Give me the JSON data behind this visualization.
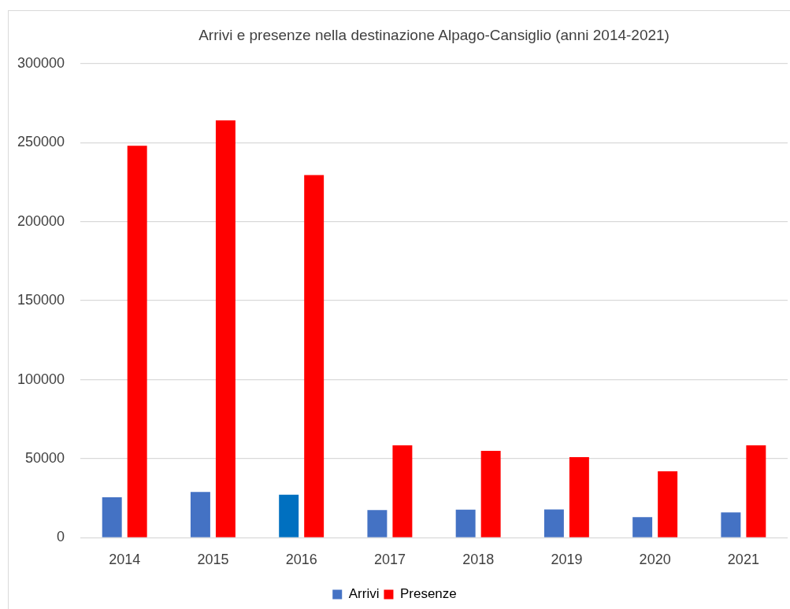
{
  "chart_data": {
    "type": "bar",
    "title": "Arrivi e presenze nella destinazione Alpago-Cansiglio (anni 2014-2021)",
    "categories": [
      "2014",
      "2015",
      "2016",
      "2017",
      "2018",
      "2019",
      "2020",
      "2021"
    ],
    "series": [
      {
        "name": "Arrivi",
        "color": "#4472c4",
        "colors": [
          "#4472c4",
          "#4472c4",
          "#0070c0",
          "#4472c4",
          "#4472c4",
          "#4472c4",
          "#4472c4",
          "#4472c4"
        ],
        "values": [
          25600,
          29000,
          27200,
          17500,
          17700,
          17900,
          13000,
          16000
        ]
      },
      {
        "name": "Presenze",
        "color": "#ff0000",
        "values": [
          248000,
          264000,
          229500,
          58500,
          55000,
          51000,
          42000,
          58500
        ]
      }
    ],
    "ylim": [
      0,
      300000
    ],
    "yticks": [
      0,
      50000,
      100000,
      150000,
      200000,
      250000,
      300000
    ],
    "grid": "y",
    "legend": "bottom"
  }
}
